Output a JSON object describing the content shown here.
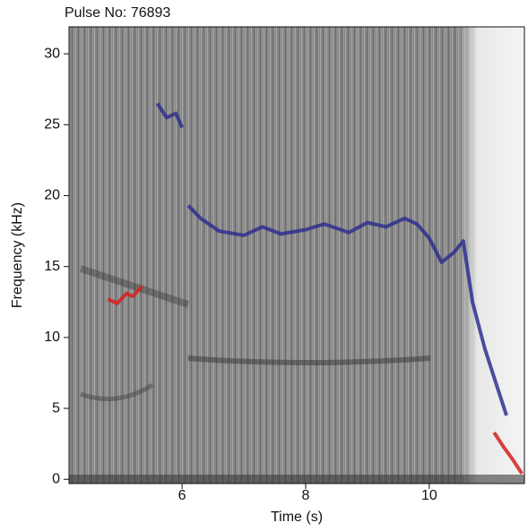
{
  "chart_data": {
    "type": "spectrogram",
    "title": "Pulse No: 76893",
    "xlabel": "Time (s)",
    "ylabel": "Frequency (kHz)",
    "xlim": [
      4.17,
      11.54
    ],
    "ylim": [
      -0.3,
      31.9
    ],
    "xticks": [
      6,
      8,
      10
    ],
    "yticks": [
      0,
      5,
      10,
      15,
      20,
      25,
      30
    ],
    "series": [
      {
        "color": "#2f2f8f",
        "x": [
          5.6,
          5.75,
          5.9,
          6.0
        ],
        "values": [
          26.5,
          25.5,
          25.8,
          24.8
        ]
      },
      {
        "color": "#2f2f8f",
        "x": [
          6.1,
          6.3,
          6.6,
          7.0,
          7.3,
          7.6,
          8.0,
          8.3,
          8.7,
          9.0,
          9.3,
          9.6,
          9.8,
          10.0,
          10.2,
          10.4,
          10.55,
          10.7,
          10.9,
          11.1,
          11.25
        ],
        "values": [
          19.3,
          18.4,
          17.5,
          17.2,
          17.8,
          17.3,
          17.6,
          18.0,
          17.4,
          18.1,
          17.8,
          18.4,
          18.0,
          17.0,
          15.3,
          16.0,
          16.8,
          12.5,
          9.2,
          6.5,
          4.5
        ]
      },
      {
        "color": "#d42020",
        "x": [
          4.8,
          4.95,
          5.1,
          5.2,
          5.35
        ],
        "values": [
          12.7,
          12.4,
          13.1,
          12.9,
          13.6
        ]
      },
      {
        "color": "#d42020",
        "x": [
          11.05,
          11.2,
          11.35,
          11.5
        ],
        "values": [
          3.3,
          2.3,
          1.4,
          0.4
        ]
      }
    ]
  }
}
